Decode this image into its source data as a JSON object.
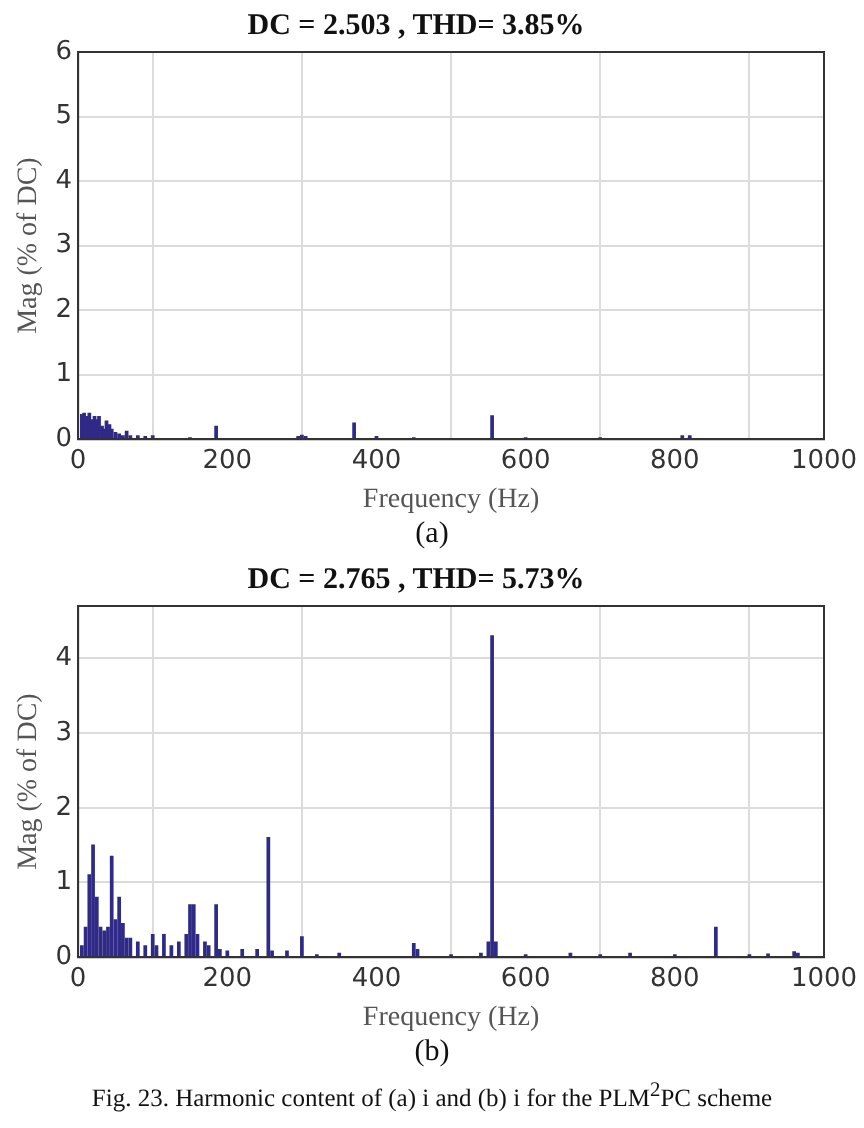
{
  "chart_data": [
    {
      "type": "bar",
      "title": "DC = 2.503 , THD= 3.85%",
      "xlabel": "Frequency (Hz)",
      "ylabel": "Mag (% of DC)",
      "color": "#2e2a86",
      "x": [
        5,
        8,
        12,
        15,
        18,
        22,
        25,
        28,
        32,
        35,
        38,
        42,
        45,
        50,
        55,
        60,
        65,
        70,
        80,
        90,
        100,
        150,
        185,
        295,
        300,
        305,
        370,
        400,
        450,
        555,
        600,
        700,
        810,
        820
      ],
      "values": [
        0.38,
        0.4,
        0.35,
        0.4,
        0.3,
        0.35,
        0.3,
        0.35,
        0.2,
        0.15,
        0.28,
        0.22,
        0.15,
        0.1,
        0.08,
        0.05,
        0.12,
        0.05,
        0.05,
        0.04,
        0.05,
        0.02,
        0.2,
        0.04,
        0.06,
        0.04,
        0.25,
        0.04,
        0.02,
        0.36,
        0.02,
        0.02,
        0.05,
        0.05
      ],
      "xlim": [
        0,
        1000
      ],
      "xticks": [
        0,
        200,
        400,
        600,
        800,
        1000
      ],
      "ylim": [
        0,
        6
      ],
      "yticks": [
        0,
        1,
        2,
        3,
        4,
        5,
        6
      ],
      "grid": true,
      "annotations": [
        "(a)"
      ]
    },
    {
      "type": "bar",
      "title": "DC = 2.765 , THD= 5.73%",
      "xlabel": "Frequency (Hz)",
      "ylabel": "Mag (% of DC)",
      "color": "#2e2a86",
      "x": [
        5,
        10,
        15,
        20,
        25,
        30,
        35,
        40,
        45,
        50,
        55,
        60,
        65,
        70,
        80,
        90,
        100,
        105,
        115,
        125,
        135,
        145,
        150,
        155,
        160,
        170,
        175,
        185,
        190,
        200,
        220,
        240,
        255,
        260,
        280,
        300,
        320,
        350,
        450,
        455,
        500,
        540,
        550,
        555,
        560,
        600,
        660,
        700,
        740,
        800,
        855,
        900,
        925,
        960,
        965
      ],
      "values": [
        0.15,
        0.4,
        1.1,
        1.5,
        0.8,
        0.4,
        0.35,
        0.4,
        1.35,
        0.5,
        0.8,
        0.45,
        0.25,
        0.25,
        0.2,
        0.15,
        0.3,
        0.15,
        0.3,
        0.15,
        0.2,
        0.3,
        0.7,
        0.7,
        0.3,
        0.2,
        0.15,
        0.7,
        0.1,
        0.08,
        0.1,
        0.1,
        1.6,
        0.08,
        0.08,
        0.27,
        0.03,
        0.05,
        0.18,
        0.1,
        0.03,
        0.05,
        0.2,
        4.3,
        0.2,
        0.03,
        0.05,
        0.03,
        0.05,
        0.03,
        0.4,
        0.03,
        0.04,
        0.07,
        0.05
      ],
      "xlim": [
        0,
        1000
      ],
      "xticks": [
        0,
        200,
        400,
        600,
        800,
        1000
      ],
      "ylim": [
        0,
        4.7
      ],
      "yticks": [
        0,
        1,
        2,
        3,
        4
      ],
      "grid": true,
      "annotations": [
        "(b)",
        "Fig. 23. Harmonic content of (a) i and (b) i for the PLM$^{2}$PC scheme"
      ]
    }
  ]
}
